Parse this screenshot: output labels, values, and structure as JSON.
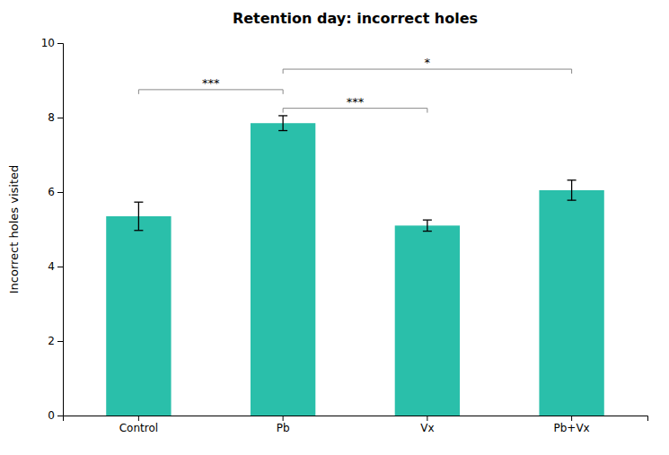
{
  "chart_data": {
    "type": "bar",
    "title": "Retention day: incorrect holes",
    "ylabel": "Incorrect holes visited",
    "categories": [
      "Control",
      "Pb",
      "Vx",
      "Pb+Vx"
    ],
    "values": [
      5.35,
      7.85,
      5.1,
      6.05
    ],
    "errors": [
      0.38,
      0.2,
      0.15,
      0.27
    ],
    "color": "#2abfaa",
    "ylim": [
      0,
      10
    ],
    "yticks": [
      0,
      2,
      4,
      6,
      8,
      10
    ],
    "grid": false,
    "brackets": [
      {
        "from": "Control",
        "to": "Pb",
        "y": 8.75,
        "label": "***"
      },
      {
        "from": "Pb",
        "to": "Vx",
        "y": 8.25,
        "label": "***"
      },
      {
        "from": "Pb",
        "to": "Pb+Vx",
        "y": 9.3,
        "label": "*"
      }
    ]
  }
}
